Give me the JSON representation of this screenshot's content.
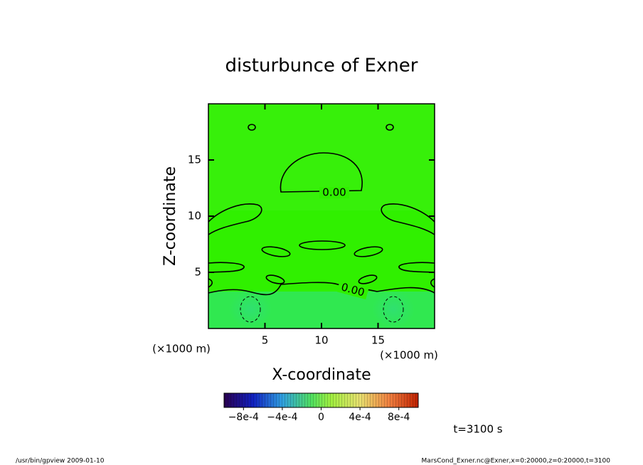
{
  "chart_data": {
    "type": "contour",
    "title": "disturbunce of Exner",
    "x_label": "X-coordinate",
    "y_label": "Z-coordinate",
    "x_unit": "(×1000 m)",
    "y_unit": "(×1000 m)",
    "xlim": [
      0,
      20
    ],
    "ylim": [
      0,
      20
    ],
    "xticks": [
      5,
      10,
      15
    ],
    "yticks": [
      5,
      10,
      15
    ],
    "contour_levels": [
      {
        "value": 0,
        "label": "0.00"
      }
    ],
    "colorbar": {
      "lim": [
        -0.001,
        0.001
      ],
      "ticks": [
        {
          "value": -0.0008,
          "label": "−8e-4"
        },
        {
          "value": -0.0004,
          "label": "−4e-4"
        },
        {
          "value": 0,
          "label": "0"
        },
        {
          "value": 0.0004,
          "label": "4e-4"
        },
        {
          "value": 0.0008,
          "label": "8e-4"
        }
      ]
    },
    "time_label": "t=3100 s",
    "footer_left": "/usr/bin/gpview   2009-01-10",
    "footer_right": "MarsCond_Exner.nc@Exner,x=0:20000,z=0:20000,t=3100"
  }
}
